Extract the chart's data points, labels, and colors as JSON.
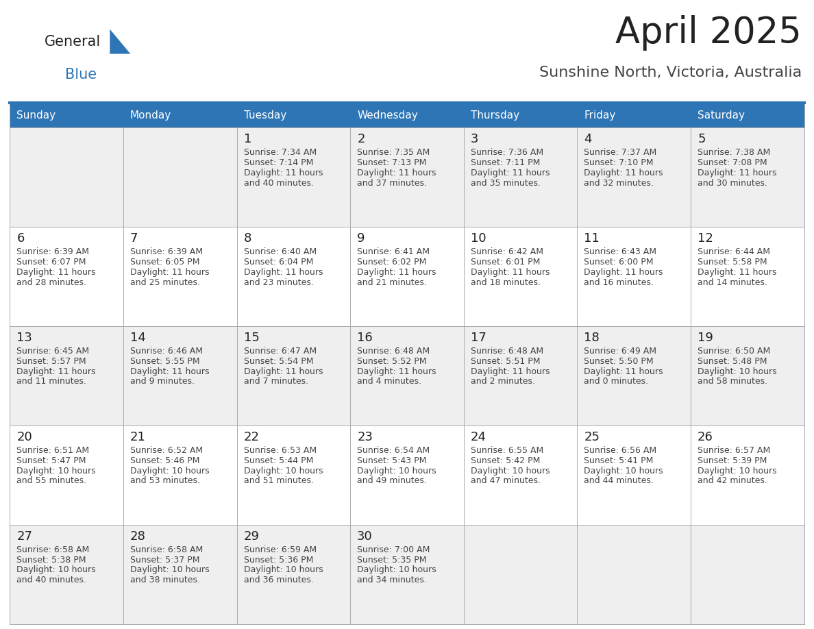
{
  "title": "April 2025",
  "subtitle": "Sunshine North, Victoria, Australia",
  "header_bg": "#2E75B6",
  "header_text": "#FFFFFF",
  "cell_border": "#AAAAAA",
  "day_number_color": "#222222",
  "cell_text_color": "#444444",
  "row_bg": [
    "#EFEFEF",
    "#FFFFFF",
    "#EFEFEF",
    "#FFFFFF",
    "#EFEFEF"
  ],
  "days_of_week": [
    "Sunday",
    "Monday",
    "Tuesday",
    "Wednesday",
    "Thursday",
    "Friday",
    "Saturday"
  ],
  "calendar": [
    [
      {
        "day": "",
        "lines": []
      },
      {
        "day": "",
        "lines": []
      },
      {
        "day": "1",
        "lines": [
          "Sunrise: 7:34 AM",
          "Sunset: 7:14 PM",
          "Daylight: 11 hours",
          "and 40 minutes."
        ]
      },
      {
        "day": "2",
        "lines": [
          "Sunrise: 7:35 AM",
          "Sunset: 7:13 PM",
          "Daylight: 11 hours",
          "and 37 minutes."
        ]
      },
      {
        "day": "3",
        "lines": [
          "Sunrise: 7:36 AM",
          "Sunset: 7:11 PM",
          "Daylight: 11 hours",
          "and 35 minutes."
        ]
      },
      {
        "day": "4",
        "lines": [
          "Sunrise: 7:37 AM",
          "Sunset: 7:10 PM",
          "Daylight: 11 hours",
          "and 32 minutes."
        ]
      },
      {
        "day": "5",
        "lines": [
          "Sunrise: 7:38 AM",
          "Sunset: 7:08 PM",
          "Daylight: 11 hours",
          "and 30 minutes."
        ]
      }
    ],
    [
      {
        "day": "6",
        "lines": [
          "Sunrise: 6:39 AM",
          "Sunset: 6:07 PM",
          "Daylight: 11 hours",
          "and 28 minutes."
        ]
      },
      {
        "day": "7",
        "lines": [
          "Sunrise: 6:39 AM",
          "Sunset: 6:05 PM",
          "Daylight: 11 hours",
          "and 25 minutes."
        ]
      },
      {
        "day": "8",
        "lines": [
          "Sunrise: 6:40 AM",
          "Sunset: 6:04 PM",
          "Daylight: 11 hours",
          "and 23 minutes."
        ]
      },
      {
        "day": "9",
        "lines": [
          "Sunrise: 6:41 AM",
          "Sunset: 6:02 PM",
          "Daylight: 11 hours",
          "and 21 minutes."
        ]
      },
      {
        "day": "10",
        "lines": [
          "Sunrise: 6:42 AM",
          "Sunset: 6:01 PM",
          "Daylight: 11 hours",
          "and 18 minutes."
        ]
      },
      {
        "day": "11",
        "lines": [
          "Sunrise: 6:43 AM",
          "Sunset: 6:00 PM",
          "Daylight: 11 hours",
          "and 16 minutes."
        ]
      },
      {
        "day": "12",
        "lines": [
          "Sunrise: 6:44 AM",
          "Sunset: 5:58 PM",
          "Daylight: 11 hours",
          "and 14 minutes."
        ]
      }
    ],
    [
      {
        "day": "13",
        "lines": [
          "Sunrise: 6:45 AM",
          "Sunset: 5:57 PM",
          "Daylight: 11 hours",
          "and 11 minutes."
        ]
      },
      {
        "day": "14",
        "lines": [
          "Sunrise: 6:46 AM",
          "Sunset: 5:55 PM",
          "Daylight: 11 hours",
          "and 9 minutes."
        ]
      },
      {
        "day": "15",
        "lines": [
          "Sunrise: 6:47 AM",
          "Sunset: 5:54 PM",
          "Daylight: 11 hours",
          "and 7 minutes."
        ]
      },
      {
        "day": "16",
        "lines": [
          "Sunrise: 6:48 AM",
          "Sunset: 5:52 PM",
          "Daylight: 11 hours",
          "and 4 minutes."
        ]
      },
      {
        "day": "17",
        "lines": [
          "Sunrise: 6:48 AM",
          "Sunset: 5:51 PM",
          "Daylight: 11 hours",
          "and 2 minutes."
        ]
      },
      {
        "day": "18",
        "lines": [
          "Sunrise: 6:49 AM",
          "Sunset: 5:50 PM",
          "Daylight: 11 hours",
          "and 0 minutes."
        ]
      },
      {
        "day": "19",
        "lines": [
          "Sunrise: 6:50 AM",
          "Sunset: 5:48 PM",
          "Daylight: 10 hours",
          "and 58 minutes."
        ]
      }
    ],
    [
      {
        "day": "20",
        "lines": [
          "Sunrise: 6:51 AM",
          "Sunset: 5:47 PM",
          "Daylight: 10 hours",
          "and 55 minutes."
        ]
      },
      {
        "day": "21",
        "lines": [
          "Sunrise: 6:52 AM",
          "Sunset: 5:46 PM",
          "Daylight: 10 hours",
          "and 53 minutes."
        ]
      },
      {
        "day": "22",
        "lines": [
          "Sunrise: 6:53 AM",
          "Sunset: 5:44 PM",
          "Daylight: 10 hours",
          "and 51 minutes."
        ]
      },
      {
        "day": "23",
        "lines": [
          "Sunrise: 6:54 AM",
          "Sunset: 5:43 PM",
          "Daylight: 10 hours",
          "and 49 minutes."
        ]
      },
      {
        "day": "24",
        "lines": [
          "Sunrise: 6:55 AM",
          "Sunset: 5:42 PM",
          "Daylight: 10 hours",
          "and 47 minutes."
        ]
      },
      {
        "day": "25",
        "lines": [
          "Sunrise: 6:56 AM",
          "Sunset: 5:41 PM",
          "Daylight: 10 hours",
          "and 44 minutes."
        ]
      },
      {
        "day": "26",
        "lines": [
          "Sunrise: 6:57 AM",
          "Sunset: 5:39 PM",
          "Daylight: 10 hours",
          "and 42 minutes."
        ]
      }
    ],
    [
      {
        "day": "27",
        "lines": [
          "Sunrise: 6:58 AM",
          "Sunset: 5:38 PM",
          "Daylight: 10 hours",
          "and 40 minutes."
        ]
      },
      {
        "day": "28",
        "lines": [
          "Sunrise: 6:58 AM",
          "Sunset: 5:37 PM",
          "Daylight: 10 hours",
          "and 38 minutes."
        ]
      },
      {
        "day": "29",
        "lines": [
          "Sunrise: 6:59 AM",
          "Sunset: 5:36 PM",
          "Daylight: 10 hours",
          "and 36 minutes."
        ]
      },
      {
        "day": "30",
        "lines": [
          "Sunrise: 7:00 AM",
          "Sunset: 5:35 PM",
          "Daylight: 10 hours",
          "and 34 minutes."
        ]
      },
      {
        "day": "",
        "lines": []
      },
      {
        "day": "",
        "lines": []
      },
      {
        "day": "",
        "lines": []
      }
    ]
  ],
  "logo_general_color": "#222222",
  "logo_blue_color": "#2E75B6",
  "logo_triangle_color": "#2E75B6",
  "title_color": "#222222",
  "subtitle_color": "#444444",
  "title_fontsize": 38,
  "subtitle_fontsize": 16,
  "header_fontsize": 11,
  "day_num_fontsize": 13,
  "cell_text_fontsize": 9
}
